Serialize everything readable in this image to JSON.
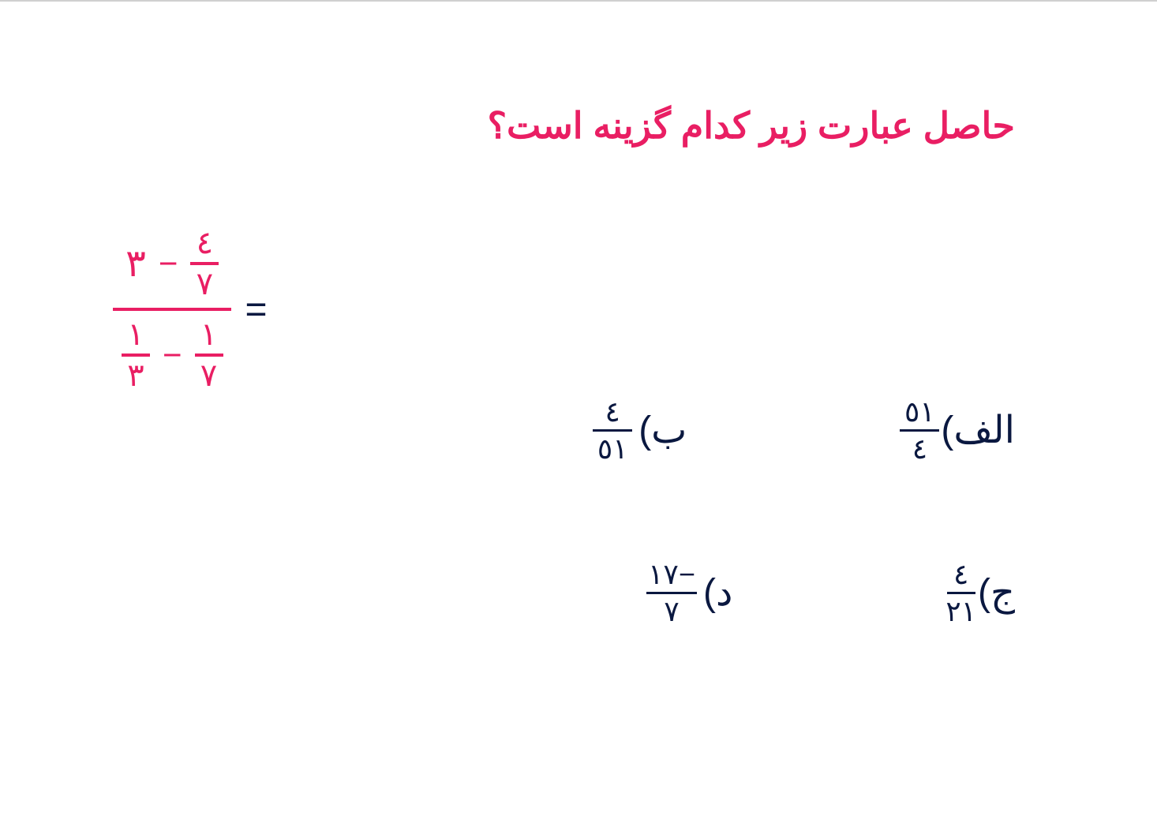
{
  "colors": {
    "primary": "#e91e63",
    "secondary": "#0a1840",
    "background": "#ffffff",
    "border": "#d0d0d0"
  },
  "typography": {
    "title_fontsize": 46,
    "body_fontsize": 40,
    "option_fontsize": 48,
    "frac_fontsize": 36
  },
  "question": {
    "title": "حاصل عبارت زیر کدام گزینه است؟"
  },
  "expression": {
    "top": {
      "whole": "۳",
      "op": "−",
      "frac": {
        "num": "٤",
        "den": "۷"
      }
    },
    "bottom": {
      "left": {
        "num": "۱",
        "den": "۳"
      },
      "op": "−",
      "right": {
        "num": "۱",
        "den": "۷"
      }
    },
    "equals": "="
  },
  "options": {
    "a": {
      "label": "الف)",
      "num": "٥۱",
      "den": "٤"
    },
    "b": {
      "label": "ب)",
      "num": "٤",
      "den": "٥۱"
    },
    "c": {
      "label": "ج)",
      "num": "٤",
      "den": "۲۱"
    },
    "d": {
      "label": "د)",
      "num": "−۱۷",
      "den": "۷"
    }
  }
}
